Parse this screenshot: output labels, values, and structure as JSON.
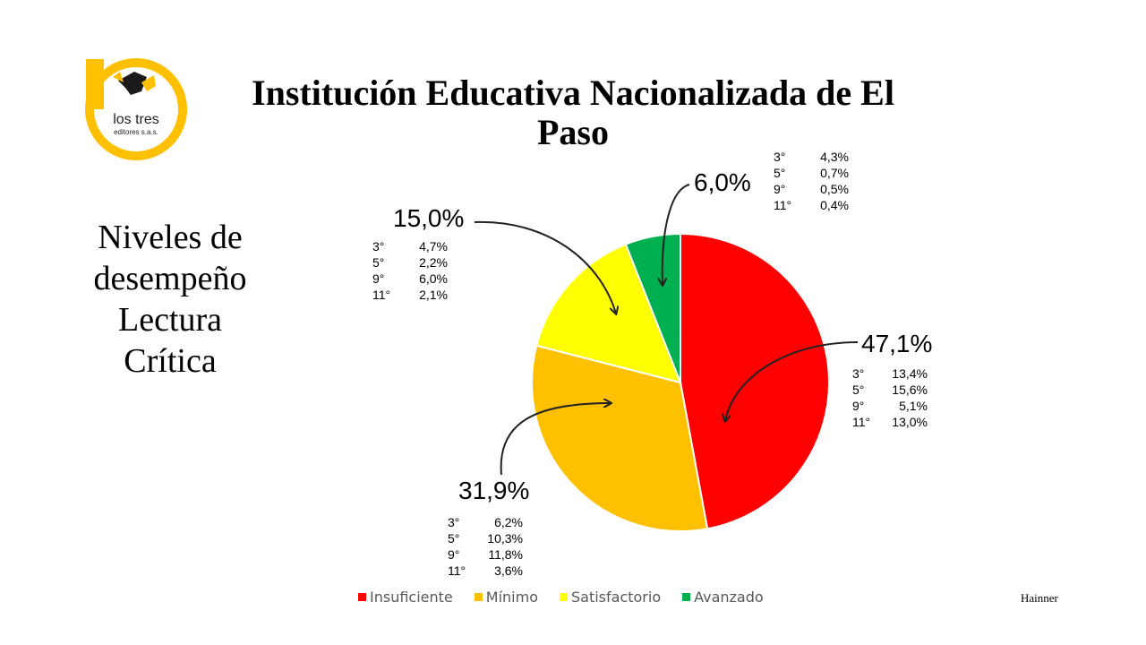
{
  "header": {
    "title": "Institución Educativa Nacionalizada de El Paso",
    "logo_text_line1": "los tres",
    "logo_text_line2": "editores s.a.s."
  },
  "subtitle_lines": [
    "Niveles de",
    "desempeño",
    "Lectura",
    "Crítica"
  ],
  "footer": {
    "author": "Hainner"
  },
  "chart_data": {
    "type": "pie",
    "title": "",
    "slices": [
      {
        "name": "Insuficiente",
        "value": 47.1,
        "label": "47,1%",
        "color": "#ff0000",
        "breakdown": [
          {
            "grade": "3°",
            "value": "13,4%"
          },
          {
            "grade": "5°",
            "value": "15,6%"
          },
          {
            "grade": "9°",
            "value": "5,1%"
          },
          {
            "grade": "11°",
            "value": "13,0%"
          }
        ]
      },
      {
        "name": "Mínimo",
        "value": 31.9,
        "label": "31,9%",
        "color": "#ffc000",
        "breakdown": [
          {
            "grade": "3°",
            "value": "6,2%"
          },
          {
            "grade": "5°",
            "value": "10,3%"
          },
          {
            "grade": "9°",
            "value": "11,8%"
          },
          {
            "grade": "11°",
            "value": "3,6%"
          }
        ]
      },
      {
        "name": "Satisfactorio",
        "value": 15.0,
        "label": "15,0%",
        "color": "#ffff00",
        "breakdown": [
          {
            "grade": "3°",
            "value": "4,7%"
          },
          {
            "grade": "5°",
            "value": "2,2%"
          },
          {
            "grade": "9°",
            "value": "6,0%"
          },
          {
            "grade": "11°",
            "value": "2,1%"
          }
        ]
      },
      {
        "name": "Avanzado",
        "value": 6.0,
        "label": "6,0%",
        "color": "#00b050",
        "breakdown": [
          {
            "grade": "3°",
            "value": "4,3%"
          },
          {
            "grade": "5°",
            "value": "0,7%"
          },
          {
            "grade": "9°",
            "value": "0,5%"
          },
          {
            "grade": "11°",
            "value": "0,4%"
          }
        ]
      }
    ],
    "legend": {
      "position": "bottom"
    }
  }
}
